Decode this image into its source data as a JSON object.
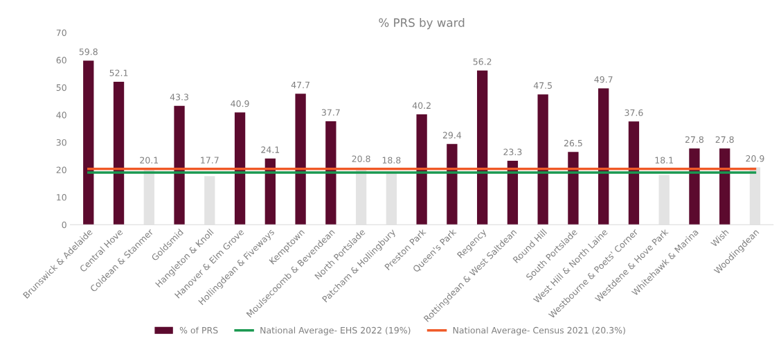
{
  "chart_data": {
    "type": "bar",
    "title": "% PRS by ward",
    "categories": [
      "Brunswick & Adelaide",
      "Central Hove",
      "Coldean & Stanmer",
      "Goldsmid",
      "Hangleton & Knoll",
      "Hanover & Elm Grove",
      "Hollingdean & Fiveways",
      "Kemptown",
      "Moulsecoomb & Bevendean",
      "North Portslade",
      "Patcham & Hollingbury",
      "Preston Park",
      "Queen's Park",
      "Regency",
      "Rottingdean & West Saltdean",
      "Round Hill",
      "South Portslade",
      "West Hill & North Laine",
      "Westbourne & Poets' Corner",
      "Westdene & Hove Park",
      "Whitehawk & Marina",
      "Wish",
      "Woodingdean"
    ],
    "series": [
      {
        "name": "% of PRS",
        "color": "#5c0a2e",
        "value_labels": [
          "59.8",
          "52.1",
          "20.1",
          "43.3",
          "17.7",
          "40.9",
          "24.1",
          "47.7",
          "37.7",
          "20.8",
          "18.8",
          "40.2",
          "29.4",
          "56.2",
          "23.3",
          "47.5",
          "26.5",
          "49.7",
          "37.6",
          "18.1",
          "27.8",
          "27.8",
          "20.9"
        ],
        "colors": [
          "#5c0a2e",
          "#5c0a2e",
          "#e3e3e3",
          "#5c0a2e",
          "#e3e3e3",
          "#5c0a2e",
          "#5c0a2e",
          "#5c0a2e",
          "#5c0a2e",
          "#e3e3e3",
          "#e3e3e3",
          "#5c0a2e",
          "#5c0a2e",
          "#5c0a2e",
          "#5c0a2e",
          "#5c0a2e",
          "#5c0a2e",
          "#5c0a2e",
          "#5c0a2e",
          "#e3e3e3",
          "#5c0a2e",
          "#5c0a2e",
          "#e3e3e3"
        ],
        "values": [
          59.8,
          52.1,
          20.1,
          43.3,
          17.7,
          40.9,
          24.1,
          47.7,
          37.7,
          20.8,
          18.8,
          40.2,
          29.4,
          56.2,
          23.3,
          47.5,
          26.5,
          49.7,
          37.6,
          18.1,
          27.8,
          27.8,
          20.9
        ]
      },
      {
        "name": "National Average- EHS 2022 (19%)",
        "type": "line",
        "color": "#1a9850",
        "values": [
          19,
          19,
          19,
          19,
          19,
          19,
          19,
          19,
          19,
          19,
          19,
          19,
          19,
          19,
          19,
          19,
          19,
          19,
          19,
          19,
          19,
          19,
          19
        ]
      },
      {
        "name": "National Average- Census 2021 (20.3%)",
        "type": "line",
        "color": "#f05a28",
        "values": [
          20.3,
          20.3,
          20.3,
          20.3,
          20.3,
          20.3,
          20.3,
          20.3,
          20.3,
          20.3,
          20.3,
          20.3,
          20.3,
          20.3,
          20.3,
          20.3,
          20.3,
          20.3,
          20.3,
          20.3,
          20.3,
          20.3,
          20.3
        ]
      }
    ],
    "ylim": [
      0,
      70
    ],
    "yticks": [
      0,
      10,
      20,
      30,
      40,
      50,
      60,
      70
    ],
    "grid": false,
    "legend": "bottom"
  }
}
